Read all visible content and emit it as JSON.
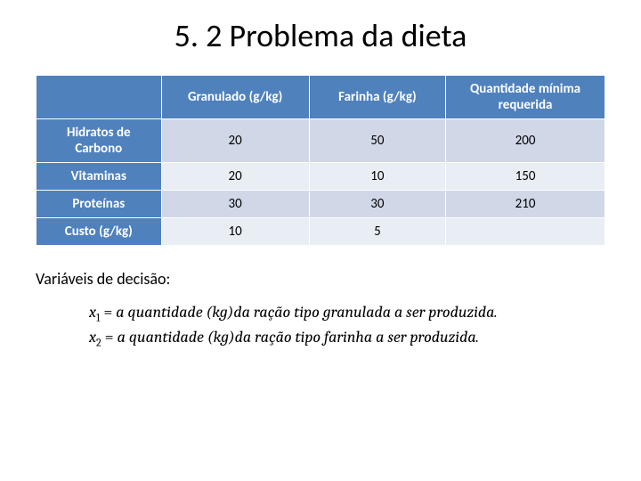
{
  "title": "5. 2 Problema da dieta",
  "table": {
    "header_bg": "#4f81bd",
    "header_fg": "#ffffff",
    "band_colors": [
      "#d0d8e8",
      "#e9edf4"
    ],
    "border_color": "#ffffff",
    "columns": [
      {
        "label": ""
      },
      {
        "label": "Granulado (g/kg)"
      },
      {
        "label": "Farinha (g/kg)"
      },
      {
        "label": "Quantidade mínima requerida"
      }
    ],
    "rows": [
      {
        "label": "Hidratos de Carbono",
        "cells": [
          "20",
          "50",
          "200"
        ]
      },
      {
        "label": "Vitaminas",
        "cells": [
          "20",
          "10",
          "150"
        ]
      },
      {
        "label": "Proteínas",
        "cells": [
          "30",
          "30",
          "210"
        ]
      },
      {
        "label": "Custo (g/kg)",
        "cells": [
          "10",
          "5",
          ""
        ]
      }
    ]
  },
  "vars_label": "Variáveis de decisão:",
  "math": {
    "lines": [
      {
        "var": "x",
        "sub": "1",
        "rhs": "a quantidade (kg)da ração tipo granulada a ser produzida."
      },
      {
        "var": "x",
        "sub": "2",
        "rhs": "a quantidade (kg)da ração tipo farinha a ser produzida."
      }
    ]
  }
}
